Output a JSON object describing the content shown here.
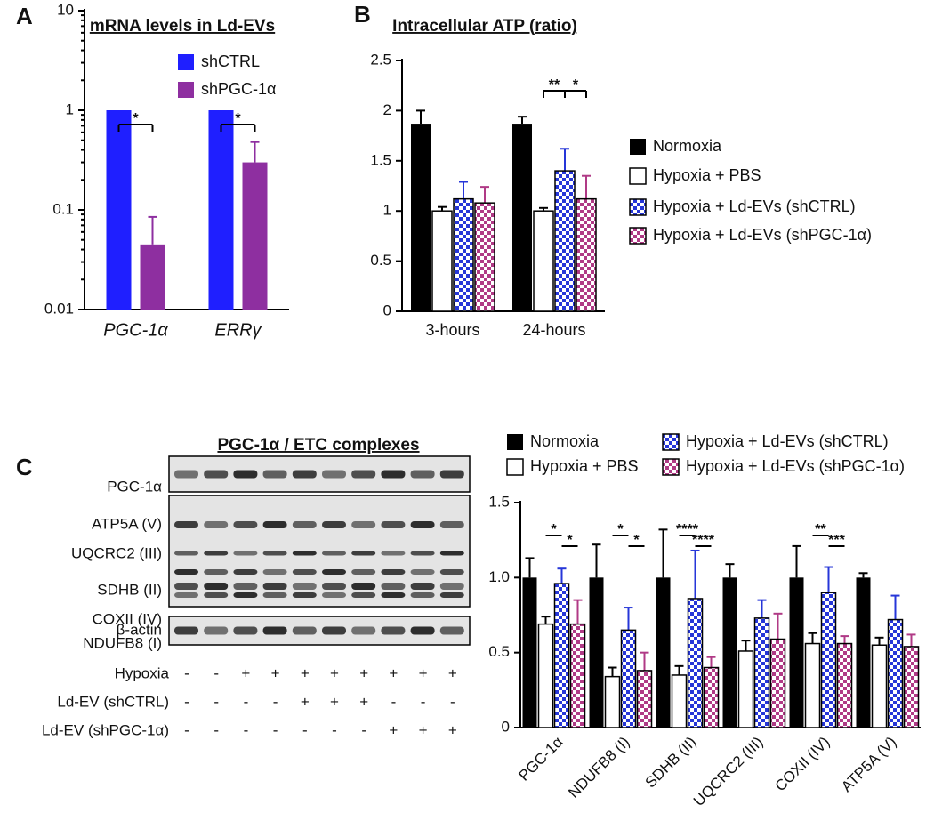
{
  "panels": [
    "A",
    "B",
    "C"
  ],
  "blot": {
    "title": "PGC-1α / ETC complexes",
    "bands": [
      "PGC-1α",
      "ATP5A (V)",
      "UQCRC2 (III)",
      "SDHB (II)",
      "COXII (IV)",
      "NDUFB8 (I)",
      "β-actin"
    ],
    "conditions": [
      {
        "label": "Hypoxia",
        "signs": [
          "-",
          "-",
          "+",
          "+",
          "+",
          "+",
          "+",
          "+",
          "+",
          "+"
        ]
      },
      {
        "label": "Ld-EV (shCTRL)",
        "signs": [
          "-",
          "-",
          "-",
          "-",
          "+",
          "+",
          "+",
          "-",
          "-",
          "-"
        ]
      },
      {
        "label": "Ld-EV (shPGC-1α)",
        "signs": [
          "-",
          "-",
          "-",
          "-",
          "-",
          "-",
          "-",
          "+",
          "+",
          "+"
        ]
      }
    ]
  },
  "chart_data": [
    {
      "type": "bar",
      "title": "mRNA levels in Ld-EVs",
      "log": true,
      "italic_categories": true,
      "categories": [
        "PGC-1α",
        "ERRγ"
      ],
      "series": [
        {
          "name": "shCTRL",
          "color": "#1f1fff",
          "values": [
            1,
            1
          ]
        },
        {
          "name": "shPGC-1α",
          "color": "#8e2fa0",
          "values": [
            0.045,
            0.3
          ],
          "errors": [
            0.04,
            0.18
          ]
        }
      ],
      "ylim": [
        0.01,
        10
      ],
      "yticks": [
        0.01,
        0.1,
        1,
        10
      ],
      "annotations": [
        "*",
        "*"
      ]
    },
    {
      "type": "bar",
      "title": "Intracellular ATP (ratio)",
      "categories": [
        "3-hours",
        "24-hours"
      ],
      "series": [
        {
          "name": "Normoxia",
          "color": "#000000",
          "values": [
            1.87,
            1.87
          ],
          "errors": [
            0.13,
            0.07
          ]
        },
        {
          "name": "Hypoxia + PBS",
          "color": "#ffffff",
          "values": [
            1,
            1
          ],
          "errors": [
            0.04,
            0.03
          ]
        },
        {
          "name": "Hypoxia + Ld-EVs (shCTRL)",
          "color": "#2636d8",
          "pattern": "checker",
          "values": [
            1.12,
            1.4
          ],
          "errors": [
            0.17,
            0.22
          ]
        },
        {
          "name": "Hypoxia + Ld-EVs (shPGC-1α)",
          "color": "#b03a86",
          "pattern": "checker",
          "values": [
            1.08,
            1.12
          ],
          "errors": [
            0.16,
            0.23
          ]
        }
      ],
      "ylim": [
        0,
        2.5
      ],
      "yticks": [
        0,
        0.5,
        1,
        1.5,
        2,
        2.5
      ],
      "annotations": [
        "**",
        "*"
      ]
    },
    {
      "type": "bar",
      "rotate_categories": true,
      "categories": [
        "PGC-1α",
        "NDUFB8 (I)",
        "SDHB (II)",
        "UQCRC2 (III)",
        "COXII (IV)",
        "ATP5A (V)"
      ],
      "series": [
        {
          "name": "Normoxia",
          "color": "#000000",
          "values": [
            1,
            1,
            1,
            1,
            1,
            1
          ],
          "errors": [
            0.13,
            0.22,
            0.32,
            0.09,
            0.21,
            0.03
          ]
        },
        {
          "name": "Hypoxia + PBS",
          "color": "#ffffff",
          "values": [
            0.69,
            0.34,
            0.35,
            0.51,
            0.56,
            0.55
          ],
          "errors": [
            0.05,
            0.06,
            0.06,
            0.07,
            0.07,
            0.05
          ]
        },
        {
          "name": "Hypoxia + Ld-EVs (shCTRL)",
          "color": "#2636d8",
          "pattern": "checker",
          "values": [
            0.96,
            0.65,
            0.86,
            0.73,
            0.9,
            0.72
          ],
          "errors": [
            0.1,
            0.15,
            0.32,
            0.12,
            0.17,
            0.16
          ]
        },
        {
          "name": "Hypoxia + Ld-EVs (shPGC-1α)",
          "color": "#b03a86",
          "pattern": "checker",
          "values": [
            0.69,
            0.38,
            0.4,
            0.59,
            0.56,
            0.54
          ],
          "errors": [
            0.16,
            0.12,
            0.07,
            0.17,
            0.05,
            0.08
          ]
        }
      ],
      "ylim": [
        0,
        1.5
      ],
      "yticks": [
        0,
        0.5,
        {
          "value": 1,
          "label": "1.0"
        },
        1.5
      ],
      "annotations": [
        "*",
        "*",
        "*",
        "*",
        "****",
        "****",
        "**",
        "***"
      ]
    }
  ]
}
